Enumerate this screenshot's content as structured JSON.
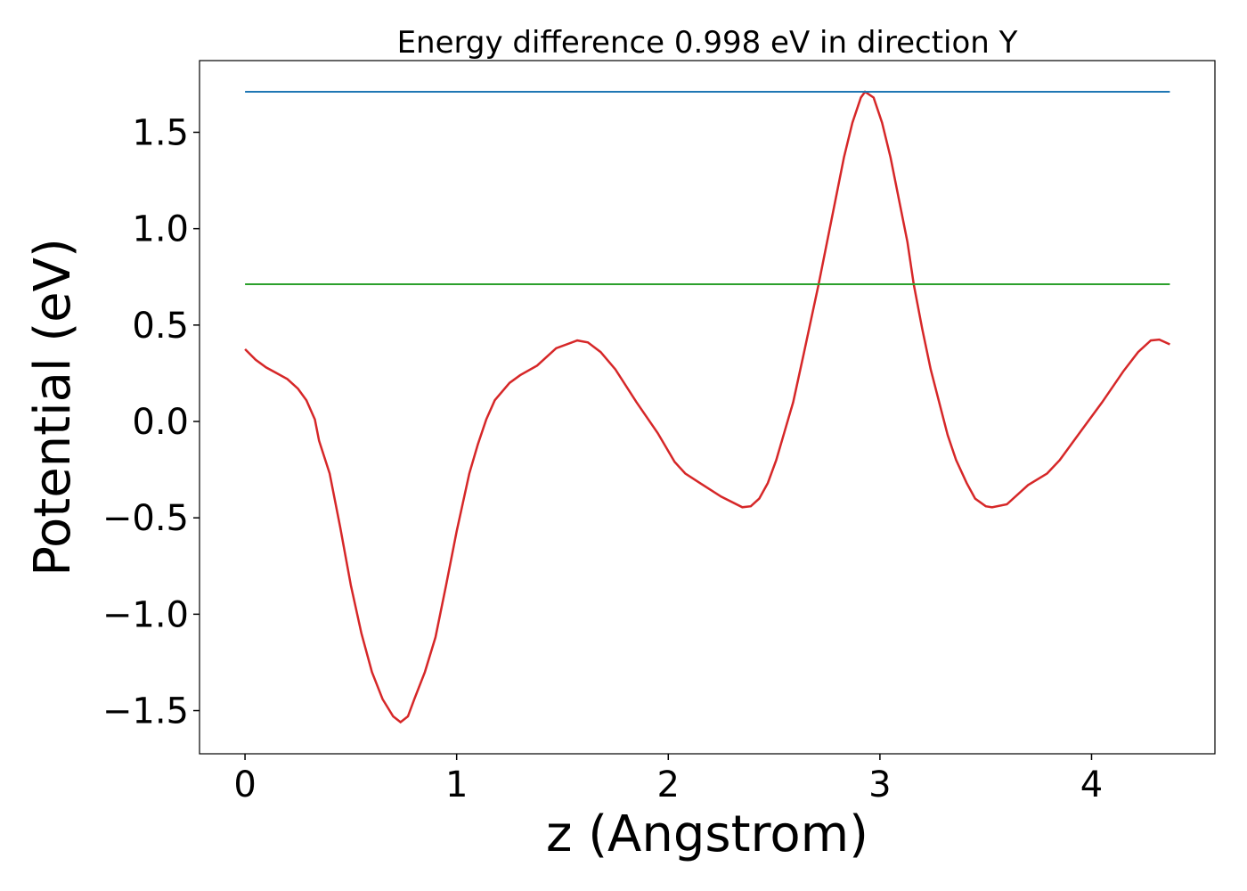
{
  "chart_data": {
    "type": "line",
    "title": "Energy difference 0.998 eV in direction Y",
    "xlabel": "z (Angstrom)",
    "ylabel": "Potential (eV)",
    "xlim": [
      -0.215,
      4.583
    ],
    "ylim": [
      -1.724,
      1.872
    ],
    "xticks": [
      0,
      1,
      2,
      3,
      4
    ],
    "yticks": [
      {
        "value": -1.5,
        "label": "−1.5"
      },
      {
        "value": -1.0,
        "label": "−1.0"
      },
      {
        "value": -0.5,
        "label": "−0.5"
      },
      {
        "value": 0,
        "label": "0.0"
      },
      0.5,
      {
        "value": 1.0,
        "label": "1.0"
      },
      1.5
    ],
    "series": [
      {
        "color": "#d62728",
        "x": [
          0,
          0.05,
          0.1,
          0.15,
          0.2,
          0.25,
          0.29,
          0.33,
          0.35,
          0.4,
          0.45,
          0.5,
          0.55,
          0.6,
          0.65,
          0.7,
          0.735,
          0.77,
          0.8,
          0.85,
          0.9,
          0.95,
          1.0,
          1.06,
          1.1,
          1.14,
          1.18,
          1.25,
          1.3,
          1.38,
          1.47,
          1.57,
          1.62,
          1.68,
          1.75,
          1.85,
          1.95,
          2.03,
          2.08,
          2.15,
          2.25,
          2.35,
          2.39,
          2.43,
          2.47,
          2.51,
          2.55,
          2.59,
          2.64,
          2.71,
          2.75,
          2.79,
          2.83,
          2.87,
          2.91,
          2.93,
          2.97,
          3.01,
          3.05,
          3.09,
          3.13,
          3.16,
          3.2,
          3.24,
          3.28,
          3.32,
          3.36,
          3.41,
          3.45,
          3.5,
          3.53,
          3.6,
          3.7,
          3.79,
          3.85,
          3.95,
          4.05,
          4.15,
          4.22,
          4.28,
          4.32,
          4.37
        ],
        "values": [
          0.375,
          0.32,
          0.28,
          0.25,
          0.22,
          0.17,
          0.11,
          0.01,
          -0.1,
          -0.27,
          -0.55,
          -0.85,
          -1.1,
          -1.3,
          -1.44,
          -1.53,
          -1.56,
          -1.53,
          -1.44,
          -1.3,
          -1.12,
          -0.85,
          -0.57,
          -0.27,
          -0.12,
          0.01,
          0.11,
          0.2,
          0.24,
          0.29,
          0.38,
          0.42,
          0.41,
          0.36,
          0.27,
          0.1,
          -0.06,
          -0.21,
          -0.27,
          -0.32,
          -0.39,
          -0.445,
          -0.44,
          -0.4,
          -0.32,
          -0.2,
          -0.05,
          0.1,
          0.35,
          0.71,
          0.93,
          1.15,
          1.37,
          1.55,
          1.68,
          1.71,
          1.68,
          1.55,
          1.37,
          1.15,
          0.93,
          0.71,
          0.48,
          0.27,
          0.1,
          -0.07,
          -0.2,
          -0.32,
          -0.4,
          -0.44,
          -0.445,
          -0.43,
          -0.33,
          -0.27,
          -0.2,
          -0.05,
          0.1,
          0.26,
          0.36,
          0.42,
          0.425,
          0.4
        ]
      },
      {
        "color": "#1f77b4",
        "x": [
          0,
          4.37
        ],
        "values": [
          1.71,
          1.71
        ]
      },
      {
        "color": "#2ca02c",
        "x": [
          0,
          4.37
        ],
        "values": [
          0.712,
          0.712
        ]
      }
    ]
  }
}
